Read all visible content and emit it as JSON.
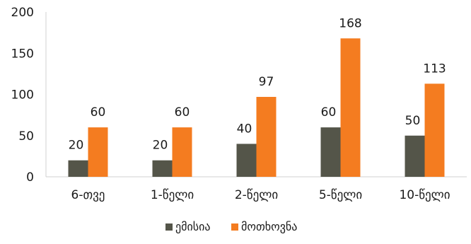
{
  "chart_data": {
    "type": "bar",
    "categories": [
      "6-თვე",
      "1-წელი",
      "2-წელი",
      "5-წელი",
      "10-წელი"
    ],
    "series": [
      {
        "name": "ემისია",
        "values": [
          20,
          20,
          40,
          60,
          50
        ],
        "color": "#545549"
      },
      {
        "name": "მოთხოვნა",
        "values": [
          60,
          60,
          97,
          168,
          113
        ],
        "color": "#f47c20"
      }
    ],
    "ylim": [
      0,
      200
    ],
    "yticks": [
      "0",
      "50",
      "100",
      "150",
      "200"
    ],
    "title": "",
    "xlabel": "",
    "ylabel": "",
    "grid": false,
    "legend_position": "bottom",
    "data_labels": true
  }
}
